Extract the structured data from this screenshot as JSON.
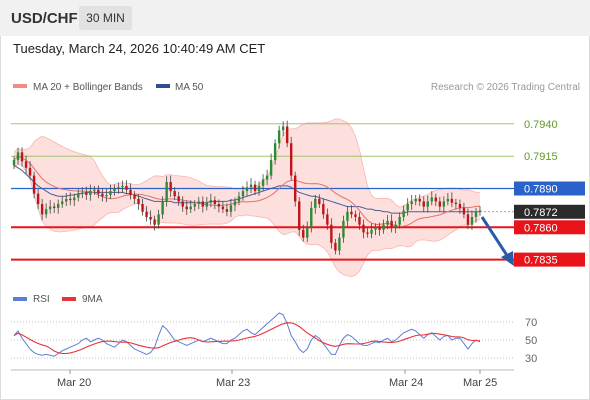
{
  "header": {
    "symbol": "USD/CHF",
    "timeframe": "30 MIN"
  },
  "datetime": "Tuesday, March 24, 2026 10:40:49 AM CET",
  "credit": "Research © 2026 Trading Central",
  "legend": [
    {
      "label": "MA 20 + Bollinger Bands",
      "color": "#f28b82"
    },
    {
      "label": "MA 50",
      "color": "#2f4f8f"
    }
  ],
  "rsi_legend": [
    {
      "label": "RSI",
      "color": "#5b7fd6"
    },
    {
      "label": "9MA",
      "color": "#e8333a"
    }
  ],
  "chart_data": {
    "type": "candlestick",
    "ylim": [
      0.782,
      0.796
    ],
    "x_tick_labels": [
      "Mar 20",
      "Mar 23",
      "Mar 24",
      "Mar 25"
    ],
    "levels": [
      {
        "value": 0.794,
        "label": "0.7940",
        "color": "#8fc05a",
        "style": "thin"
      },
      {
        "value": 0.7915,
        "label": "0.7915",
        "color": "#8fc05a",
        "style": "thin"
      },
      {
        "value": 0.789,
        "label": "0.7890",
        "color": "#2a62c9",
        "style": "solid",
        "box": "#2a62c9"
      },
      {
        "value": 0.7872,
        "label": "0.7872",
        "color": "#333333",
        "style": "price",
        "box": "#2b2b2b"
      },
      {
        "value": 0.786,
        "label": "0.7860",
        "color": "#e8141a",
        "style": "thick",
        "box": "#e8141a"
      },
      {
        "value": 0.7835,
        "label": "0.7835",
        "color": "#e8141a",
        "style": "thick",
        "box": "#e8141a"
      }
    ],
    "close": [
      0.7912,
      0.7918,
      0.7911,
      0.7906,
      0.79,
      0.7886,
      0.7878,
      0.787,
      0.7874,
      0.7876,
      0.7875,
      0.7878,
      0.788,
      0.7882,
      0.7881,
      0.7883,
      0.7886,
      0.7887,
      0.7885,
      0.7888,
      0.7889,
      0.7886,
      0.7884,
      0.7885,
      0.7888,
      0.789,
      0.7891,
      0.7892,
      0.7889,
      0.7885,
      0.7882,
      0.7878,
      0.7872,
      0.7868,
      0.7866,
      0.7862,
      0.787,
      0.788,
      0.7895,
      0.7888,
      0.7884,
      0.788,
      0.7876,
      0.7874,
      0.7876,
      0.7878,
      0.788,
      0.7876,
      0.7879,
      0.7881,
      0.7878,
      0.7876,
      0.7874,
      0.7872,
      0.7877,
      0.788,
      0.7884,
      0.7888,
      0.7891,
      0.7893,
      0.7888,
      0.7892,
      0.7897,
      0.79,
      0.7912,
      0.7925,
      0.7935,
      0.7938,
      0.7925,
      0.79,
      0.788,
      0.7858,
      0.7852,
      0.786,
      0.7875,
      0.7882,
      0.7878,
      0.787,
      0.7862,
      0.7848,
      0.7842,
      0.7852,
      0.7865,
      0.7872,
      0.787,
      0.7868,
      0.7862,
      0.7856,
      0.7855,
      0.7858,
      0.786,
      0.7858,
      0.7862,
      0.7865,
      0.786,
      0.7862,
      0.7868,
      0.7873,
      0.7878,
      0.788,
      0.7882,
      0.788,
      0.7876,
      0.788,
      0.7883,
      0.788,
      0.7876,
      0.788,
      0.7882,
      0.7879,
      0.7878,
      0.7875,
      0.787,
      0.7862,
      0.7868,
      0.7872,
      0.7873
    ],
    "ma50": [
      0.7908,
      0.7906,
      0.7904,
      0.7901,
      0.7898,
      0.7895,
      0.7892,
      0.789,
      0.7888,
      0.7886,
      0.7885,
      0.7884,
      0.7884,
      0.7884,
      0.7885,
      0.7885,
      0.7886,
      0.7886,
      0.7887,
      0.7887,
      0.7887,
      0.7887,
      0.7887,
      0.7887,
      0.7887,
      0.7887,
      0.7887,
      0.7887,
      0.7886,
      0.7886,
      0.7885,
      0.7884,
      0.7883,
      0.7882,
      0.7881,
      0.788,
      0.788,
      0.788,
      0.788,
      0.788,
      0.7879,
      0.7879,
      0.7879,
      0.7879,
      0.7879,
      0.7879,
      0.7879,
      0.7879,
      0.7879,
      0.788,
      0.788,
      0.788,
      0.788,
      0.788,
      0.7881,
      0.7881,
      0.7882,
      0.7883,
      0.7884,
      0.7885,
      0.7886,
      0.7887,
      0.7888,
      0.7889,
      0.789,
      0.7891,
      0.7892,
      0.7892,
      0.7892,
      0.7891,
      0.7889,
      0.7887,
      0.7886,
      0.7885,
      0.7884,
      0.7884,
      0.7883,
      0.7882,
      0.7881,
      0.788,
      0.7879,
      0.7878,
      0.7877,
      0.7876,
      0.7876,
      0.7876,
      0.7876,
      0.7875,
      0.7874,
      0.7874,
      0.7873,
      0.7873,
      0.7872,
      0.7872,
      0.7871,
      0.7871,
      0.7871,
      0.7871,
      0.7872,
      0.7872,
      0.7872,
      0.7872,
      0.7872,
      0.7872,
      0.7872,
      0.7872,
      0.7872,
      0.7872,
      0.7872,
      0.7872,
      0.7872,
      0.7872,
      0.7872,
      0.7872,
      0.7872,
      0.7872,
      0.7872
    ],
    "rsi": [
      55,
      60,
      52,
      46,
      40,
      36,
      34,
      33,
      34,
      33,
      32,
      35,
      38,
      40,
      42,
      44,
      46,
      50,
      52,
      48,
      50,
      52,
      50,
      46,
      44,
      42,
      46,
      50,
      48,
      44,
      40,
      38,
      36,
      34,
      36,
      42,
      55,
      66,
      62,
      56,
      50,
      48,
      46,
      44,
      46,
      48,
      50,
      48,
      50,
      52,
      50,
      48,
      46,
      46,
      50,
      52,
      56,
      60,
      62,
      58,
      56,
      60,
      64,
      68,
      72,
      76,
      80,
      78,
      68,
      55,
      48,
      40,
      36,
      40,
      50,
      55,
      52,
      46,
      40,
      34,
      34,
      44,
      52,
      56,
      54,
      50,
      46,
      44,
      44,
      46,
      48,
      47,
      50,
      52,
      48,
      50,
      54,
      58,
      60,
      62,
      60,
      56,
      52,
      56,
      58,
      54,
      50,
      54,
      55,
      50,
      52,
      52,
      46,
      40,
      46,
      50,
      48
    ],
    "rsi_ticks": [
      70,
      50,
      30
    ]
  }
}
